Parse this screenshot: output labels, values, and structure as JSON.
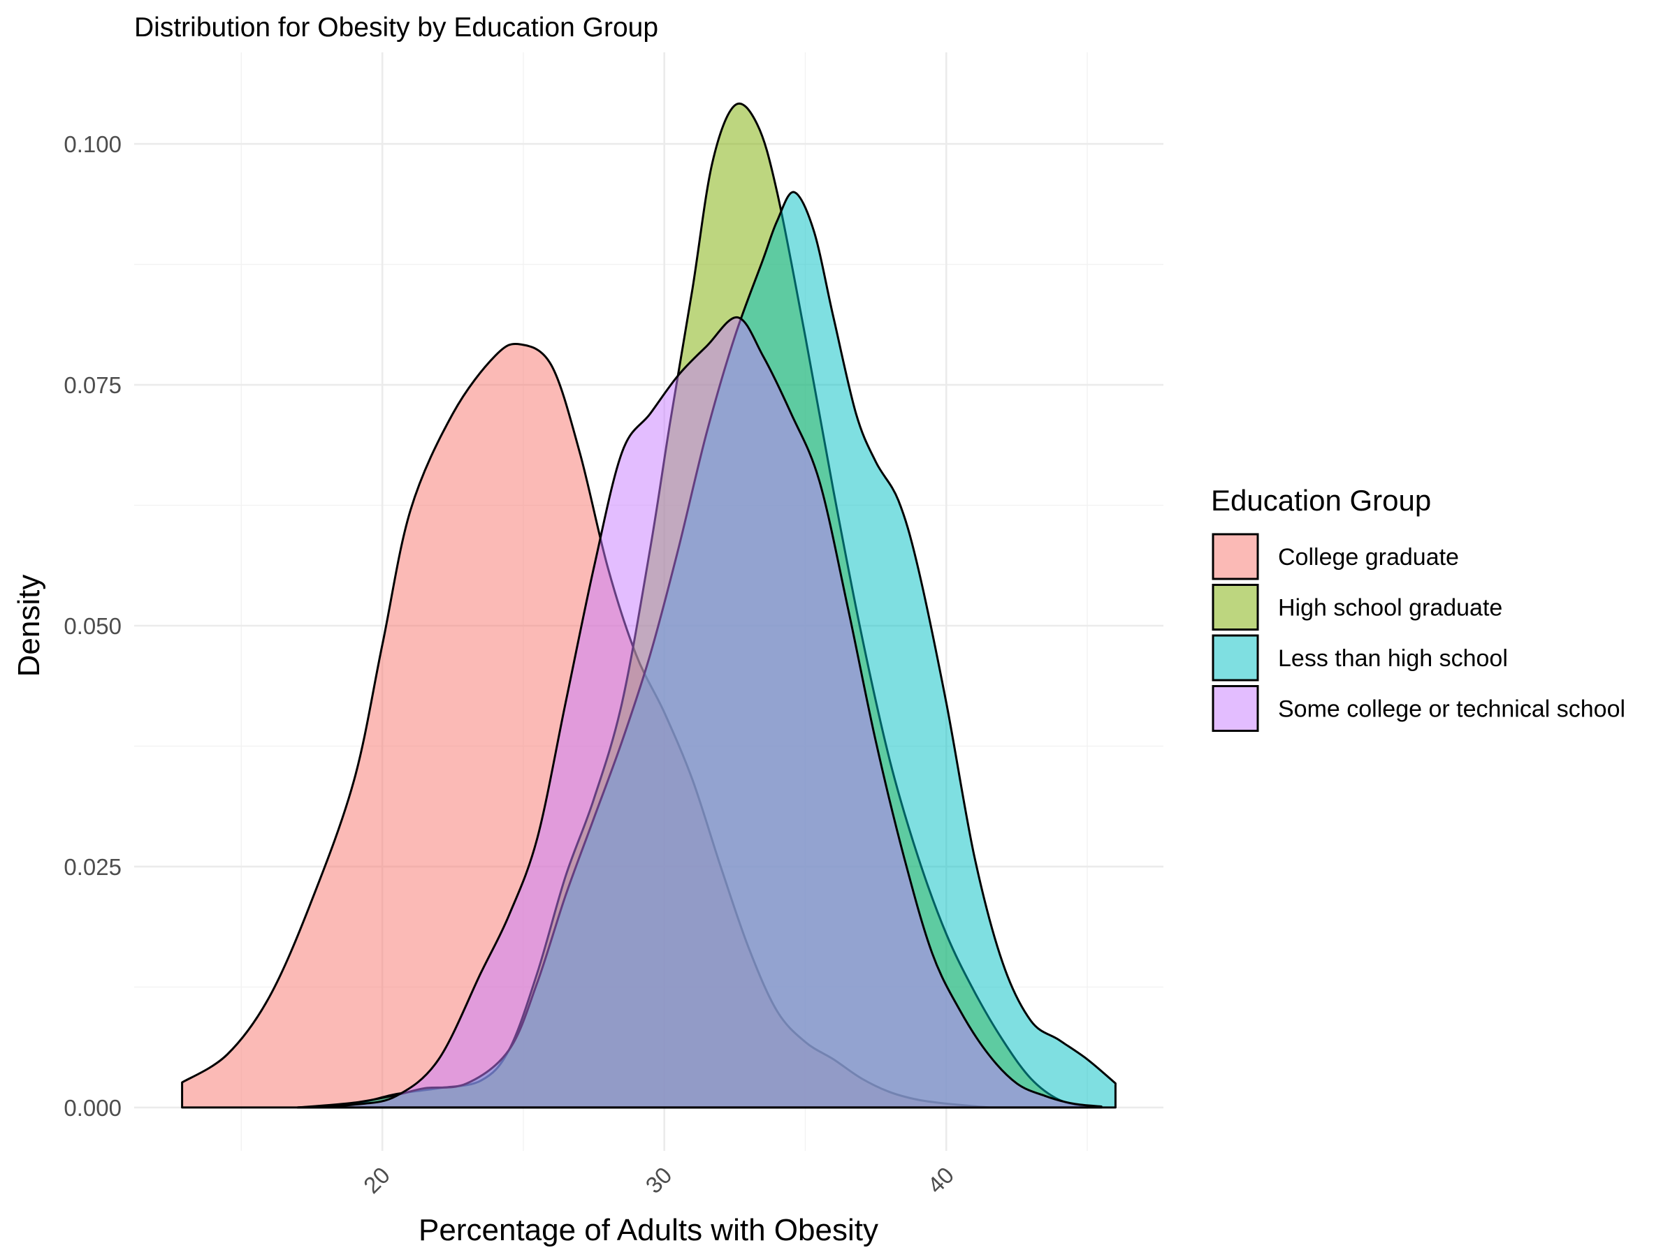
{
  "chart_data": {
    "type": "area",
    "title": "Distribution for Obesity by Education Group",
    "xlabel": "Percentage of Adults with Obesity",
    "ylabel": "Density",
    "xlim": [
      11.2,
      47.7
    ],
    "ylim": [
      -0.0045,
      0.1095
    ],
    "x_ticks": [
      20,
      30,
      40
    ],
    "x_tick_labels": [
      "20",
      "30",
      "40"
    ],
    "y_ticks": [
      0.0,
      0.025,
      0.05,
      0.075,
      0.1
    ],
    "y_tick_labels": [
      "0.000",
      "0.025",
      "0.050",
      "0.075",
      "0.100"
    ],
    "grid": true,
    "fill_alpha": 0.5,
    "legend": {
      "title": "Education Group",
      "position": "right"
    },
    "series": [
      {
        "name": "College graduate",
        "color": "#F8766D",
        "points": [
          [
            12.9,
            0.0026
          ],
          [
            14.5,
            0.0055
          ],
          [
            16.0,
            0.0115
          ],
          [
            17.5,
            0.0215
          ],
          [
            19.0,
            0.034
          ],
          [
            20.0,
            0.048
          ],
          [
            21.0,
            0.062
          ],
          [
            22.5,
            0.072
          ],
          [
            24.0,
            0.078
          ],
          [
            24.9,
            0.0792
          ],
          [
            26.0,
            0.077
          ],
          [
            27.0,
            0.068
          ],
          [
            28.0,
            0.056
          ],
          [
            29.0,
            0.047
          ],
          [
            30.0,
            0.041
          ],
          [
            31.0,
            0.034
          ],
          [
            32.0,
            0.025
          ],
          [
            33.0,
            0.0165
          ],
          [
            34.0,
            0.01
          ],
          [
            35.0,
            0.0068
          ],
          [
            36.0,
            0.005
          ],
          [
            37.0,
            0.003
          ],
          [
            38.0,
            0.0016
          ],
          [
            39.0,
            0.0008
          ],
          [
            40.0,
            0.0004
          ],
          [
            41.5,
            0.0
          ]
        ]
      },
      {
        "name": "High school graduate",
        "color": "#7CAE00",
        "points": [
          [
            17.0,
            0.0
          ],
          [
            19.0,
            0.0004
          ],
          [
            20.5,
            0.0014
          ],
          [
            22.0,
            0.002
          ],
          [
            23.5,
            0.0028
          ],
          [
            24.5,
            0.006
          ],
          [
            25.5,
            0.014
          ],
          [
            26.5,
            0.024
          ],
          [
            27.5,
            0.032
          ],
          [
            28.5,
            0.042
          ],
          [
            29.5,
            0.058
          ],
          [
            30.2,
            0.071
          ],
          [
            31.0,
            0.085
          ],
          [
            31.7,
            0.098
          ],
          [
            32.5,
            0.104
          ],
          [
            33.3,
            0.102
          ],
          [
            34.0,
            0.095
          ],
          [
            35.0,
            0.08
          ],
          [
            36.0,
            0.064
          ],
          [
            37.0,
            0.049
          ],
          [
            38.0,
            0.036
          ],
          [
            39.0,
            0.026
          ],
          [
            40.0,
            0.018
          ],
          [
            41.0,
            0.012
          ],
          [
            42.0,
            0.007
          ],
          [
            43.0,
            0.003
          ],
          [
            44.0,
            0.0008
          ],
          [
            45.0,
            0.0001
          ]
        ]
      },
      {
        "name": "Less than high school",
        "color": "#00BFC4",
        "points": [
          [
            17.0,
            0.0
          ],
          [
            19.0,
            0.0005
          ],
          [
            20.5,
            0.0013
          ],
          [
            21.5,
            0.002
          ],
          [
            23.0,
            0.0025
          ],
          [
            24.5,
            0.006
          ],
          [
            25.5,
            0.013
          ],
          [
            26.5,
            0.022
          ],
          [
            27.5,
            0.03
          ],
          [
            28.5,
            0.038
          ],
          [
            29.5,
            0.047
          ],
          [
            30.5,
            0.058
          ],
          [
            31.5,
            0.07
          ],
          [
            32.5,
            0.08
          ],
          [
            33.5,
            0.088
          ],
          [
            34.0,
            0.092
          ],
          [
            34.6,
            0.095
          ],
          [
            35.3,
            0.091
          ],
          [
            36.0,
            0.082
          ],
          [
            36.8,
            0.072
          ],
          [
            37.5,
            0.067
          ],
          [
            38.3,
            0.063
          ],
          [
            39.0,
            0.056
          ],
          [
            40.0,
            0.042
          ],
          [
            41.0,
            0.026
          ],
          [
            42.0,
            0.015
          ],
          [
            43.0,
            0.009
          ],
          [
            44.0,
            0.007
          ],
          [
            45.0,
            0.005
          ],
          [
            46.0,
            0.0025
          ]
        ]
      },
      {
        "name": "Some college or technical school",
        "color": "#C77CFF",
        "points": [
          [
            17.0,
            0.0
          ],
          [
            19.0,
            0.0003
          ],
          [
            20.5,
            0.0012
          ],
          [
            22.0,
            0.005
          ],
          [
            23.5,
            0.014
          ],
          [
            24.5,
            0.02
          ],
          [
            25.5,
            0.028
          ],
          [
            26.5,
            0.042
          ],
          [
            27.5,
            0.056
          ],
          [
            28.5,
            0.068
          ],
          [
            29.5,
            0.072
          ],
          [
            30.5,
            0.076
          ],
          [
            31.5,
            0.079
          ],
          [
            32.6,
            0.082
          ],
          [
            33.5,
            0.078
          ],
          [
            34.5,
            0.072
          ],
          [
            35.5,
            0.065
          ],
          [
            36.5,
            0.052
          ],
          [
            37.5,
            0.038
          ],
          [
            38.5,
            0.026
          ],
          [
            39.5,
            0.016
          ],
          [
            40.5,
            0.01
          ],
          [
            41.5,
            0.0055
          ],
          [
            42.5,
            0.0025
          ],
          [
            43.5,
            0.0012
          ],
          [
            44.5,
            0.0004
          ],
          [
            45.5,
            0.0001
          ]
        ]
      }
    ]
  }
}
